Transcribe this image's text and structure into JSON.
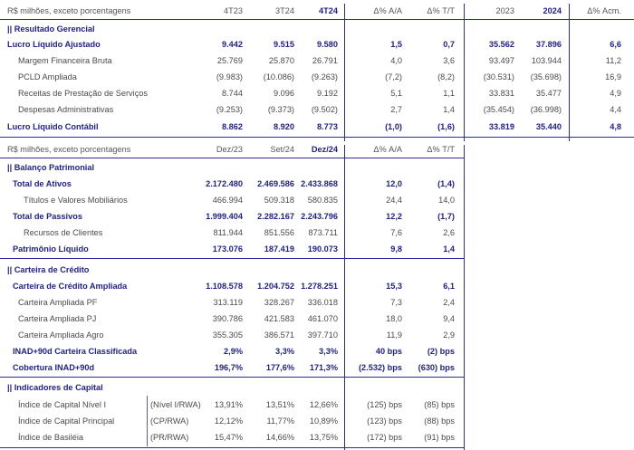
{
  "s1": {
    "header": {
      "title": "R$ milhões, exceto porcentagens",
      "c1": "4T23",
      "c2": "3T24",
      "c3": "4T24",
      "c4": "Δ% A/A",
      "c5": "Δ% T/T",
      "c6": "2023",
      "c7": "2024",
      "c8": "Δ% Acm."
    },
    "section": "|| Resultado Gerencial",
    "rows": [
      {
        "label": "Lucro Líquido Ajustado",
        "v": [
          "9.442",
          "9.515",
          "9.580",
          "1,5",
          "0,7",
          "35.562",
          "37.896",
          "6,6"
        ]
      },
      {
        "label": "Margem Financeira Bruta",
        "v": [
          "25.769",
          "25.870",
          "26.791",
          "4,0",
          "3,6",
          "93.497",
          "103.944",
          "11,2"
        ]
      },
      {
        "label": "PCLD Ampliada",
        "v": [
          "(9.983)",
          "(10.086)",
          "(9.263)",
          "(7,2)",
          "(8,2)",
          "(30.531)",
          "(35.698)",
          "16,9"
        ]
      },
      {
        "label": "Receitas de Prestação de Serviços",
        "v": [
          "8.744",
          "9.096",
          "9.192",
          "5,1",
          "1,1",
          "33.831",
          "35.477",
          "4,9"
        ]
      },
      {
        "label": "Despesas Administrativas",
        "v": [
          "(9.253)",
          "(9.373)",
          "(9.502)",
          "2,7",
          "1,4",
          "(35.454)",
          "(36.998)",
          "4,4"
        ]
      },
      {
        "label": "Lucro Líquido Contábil",
        "v": [
          "8.862",
          "8.920",
          "8.773",
          "(1,0)",
          "(1,6)",
          "33.819",
          "35.440",
          "4,8"
        ]
      }
    ]
  },
  "s2": {
    "header": {
      "title": "R$ milhões, exceto porcentagens",
      "c1": "Dez/23",
      "c2": "Set/24",
      "c3": "Dez/24",
      "c4": "Δ% A/A",
      "c5": "Δ% T/T"
    },
    "section": "|| Balanço Patrimonial",
    "rows": [
      {
        "label": "Total de Ativos",
        "v": [
          "2.172.480",
          "2.469.586",
          "2.433.868",
          "12,0",
          "(1,4)"
        ]
      },
      {
        "label": "Títulos e Valores Mobiliários",
        "v": [
          "466.994",
          "509.318",
          "580.835",
          "24,4",
          "14,0"
        ]
      },
      {
        "label": "Total de Passivos",
        "v": [
          "1.999.404",
          "2.282.167",
          "2.243.796",
          "12,2",
          "(1,7)"
        ]
      },
      {
        "label": "Recursos de Clientes",
        "v": [
          "811.944",
          "851.556",
          "873.711",
          "7,6",
          "2,6"
        ]
      },
      {
        "label": "Patrimônio Líquido",
        "v": [
          "173.076",
          "187.419",
          "190.073",
          "9,8",
          "1,4"
        ]
      }
    ]
  },
  "s3": {
    "section": "|| Carteira de Crédito",
    "rows": [
      {
        "label": "Carteira de Crédito Ampliada",
        "v": [
          "1.108.578",
          "1.204.752",
          "1.278.251",
          "15,3",
          "6,1"
        ]
      },
      {
        "label": "Carteira Ampliada PF",
        "v": [
          "313.119",
          "328.267",
          "336.018",
          "7,3",
          "2,4"
        ]
      },
      {
        "label": "Carteira Ampliada PJ",
        "v": [
          "390.786",
          "421.583",
          "461.070",
          "18,0",
          "9,4"
        ]
      },
      {
        "label": "Carteira Ampliada Agro",
        "v": [
          "355.305",
          "386.571",
          "397.710",
          "11,9",
          "2,9"
        ]
      },
      {
        "label": "INAD+90d Carteira Classificada",
        "v": [
          "2,9%",
          "3,3%",
          "3,3%",
          "40 bps",
          "(2) bps"
        ]
      },
      {
        "label": "Cobertura INAD+90d",
        "v": [
          "196,7%",
          "177,6%",
          "171,3%",
          "(2.532) bps",
          "(630) bps"
        ]
      }
    ]
  },
  "s4": {
    "section": "|| Indicadores de Capital",
    "rows": [
      {
        "label": "Índice de Capital Nível I",
        "sub": "(Nível I/RWA)",
        "v": [
          "13,91%",
          "13,51%",
          "12,66%",
          "(125) bps",
          "(85) bps"
        ]
      },
      {
        "label": "Índice de Capital Principal",
        "sub": "(CP/RWA)",
        "v": [
          "12,12%",
          "11,77%",
          "10,89%",
          "(123) bps",
          "(88) bps"
        ]
      },
      {
        "label": "Índice de Basiléia",
        "sub": "(PR/RWA)",
        "v": [
          "15,47%",
          "14,66%",
          "13,75%",
          "(172) bps",
          "(91) bps"
        ]
      }
    ]
  }
}
